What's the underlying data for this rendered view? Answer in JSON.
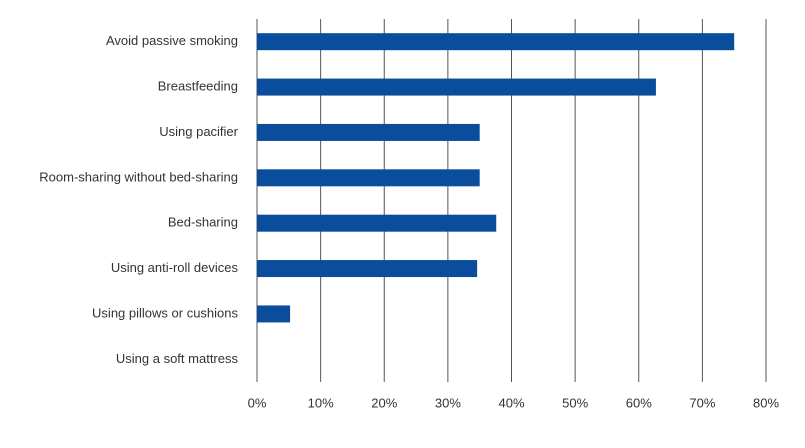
{
  "chart_data": {
    "type": "bar",
    "orientation": "horizontal",
    "categories": [
      "Avoid passive smoking",
      "Breastfeeding",
      "Using pacifier",
      "Room-sharing without bed-sharing",
      "Bed-sharing",
      "Using anti-roll devices",
      "Using pillows or cushions",
      "Using a soft mattress"
    ],
    "values": [
      75,
      62.7,
      35,
      35,
      37.6,
      34.6,
      5.2,
      0
    ],
    "color": "#0a4d9c",
    "xlim": [
      0,
      80
    ],
    "xticks": [
      {
        "value": 0,
        "label": "0%"
      },
      {
        "value": 10,
        "label": "10%"
      },
      {
        "value": 20,
        "label": "20%"
      },
      {
        "value": 30,
        "label": "30%"
      },
      {
        "value": 40,
        "label": "40%"
      },
      {
        "value": 50,
        "label": "50%"
      },
      {
        "value": 60,
        "label": "60%"
      },
      {
        "value": 70,
        "label": "70%"
      },
      {
        "value": 80,
        "label": "80%"
      }
    ],
    "grid": true
  }
}
